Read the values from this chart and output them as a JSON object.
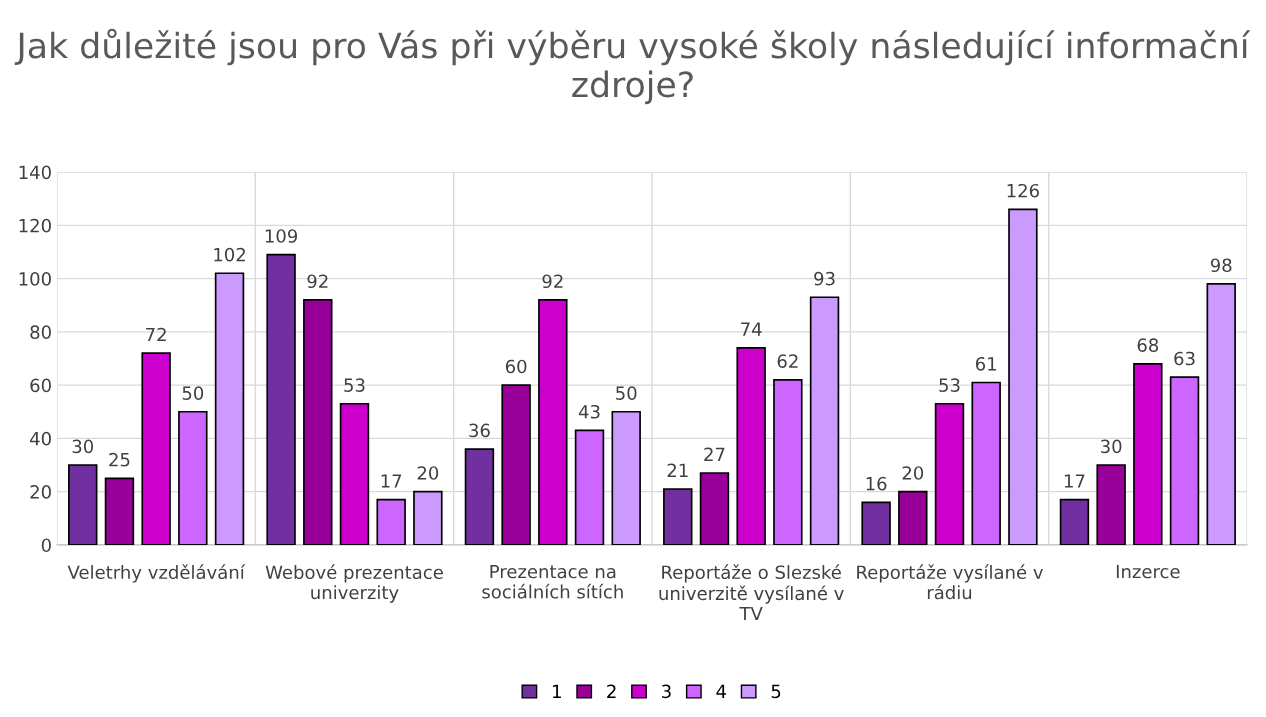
{
  "chart_data": {
    "type": "bar",
    "title": "Jak důležité jsou pro Vás při výběru vysoké školy následující informační zdroje?",
    "categories": [
      "Veletrhy vzdělávání",
      "Webové prezentace univerzity",
      "Prezentace na sociálních sítích",
      "Reportáže o Slezské univerzitě vysílané v TV",
      "Reportáže vysílané v rádiu",
      "Inzerce"
    ],
    "series": [
      {
        "name": "1",
        "color": "#7030a0",
        "values": [
          30,
          109,
          36,
          21,
          16,
          17
        ]
      },
      {
        "name": "2",
        "color": "#990099",
        "values": [
          25,
          92,
          60,
          27,
          20,
          30
        ]
      },
      {
        "name": "3",
        "color": "#cc00cc",
        "values": [
          72,
          53,
          92,
          74,
          53,
          68
        ]
      },
      {
        "name": "4",
        "color": "#cc66ff",
        "values": [
          50,
          17,
          43,
          62,
          61,
          63
        ]
      },
      {
        "name": "5",
        "color": "#cc99ff",
        "values": [
          102,
          20,
          50,
          93,
          126,
          98
        ]
      }
    ],
    "ylim": [
      0,
      140
    ],
    "yticks": [
      0,
      20,
      40,
      60,
      80,
      100,
      120,
      140
    ],
    "grid": true,
    "legend": "bottom",
    "data_labels": true
  }
}
